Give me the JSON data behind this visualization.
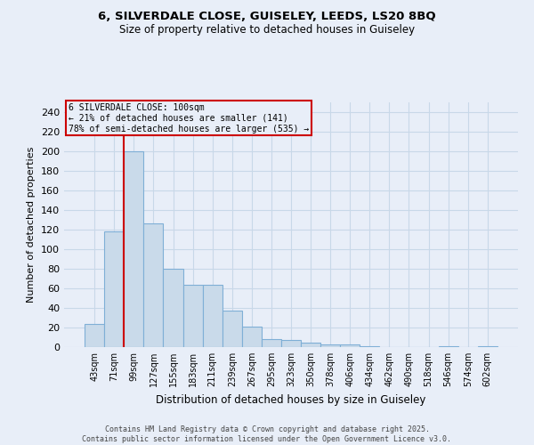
{
  "title_line1": "6, SILVERDALE CLOSE, GUISELEY, LEEDS, LS20 8BQ",
  "title_line2": "Size of property relative to detached houses in Guiseley",
  "xlabel": "Distribution of detached houses by size in Guiseley",
  "ylabel": "Number of detached properties",
  "categories": [
    "43sqm",
    "71sqm",
    "99sqm",
    "127sqm",
    "155sqm",
    "183sqm",
    "211sqm",
    "239sqm",
    "267sqm",
    "295sqm",
    "323sqm",
    "350sqm",
    "378sqm",
    "406sqm",
    "434sqm",
    "462sqm",
    "490sqm",
    "518sqm",
    "546sqm",
    "574sqm",
    "602sqm"
  ],
  "values": [
    24,
    118,
    200,
    126,
    80,
    64,
    64,
    37,
    21,
    8,
    7,
    5,
    3,
    3,
    1,
    0,
    0,
    0,
    1,
    0,
    1
  ],
  "bar_color": "#c9daea",
  "bar_edge_color": "#7fafd6",
  "grid_color": "#c8d8e8",
  "background_color": "#e8eef8",
  "vline_color": "#cc0000",
  "vline_x_idx": 2,
  "annotation_text": "6 SILVERDALE CLOSE: 100sqm\n← 21% of detached houses are smaller (141)\n78% of semi-detached houses are larger (535) →",
  "annotation_box_color": "#cc0000",
  "ylim": [
    0,
    250
  ],
  "yticks": [
    0,
    20,
    40,
    60,
    80,
    100,
    120,
    140,
    160,
    180,
    200,
    220,
    240
  ],
  "footer_text": "Contains HM Land Registry data © Crown copyright and database right 2025.\nContains public sector information licensed under the Open Government Licence v3.0.",
  "figsize": [
    6.0,
    5.0
  ],
  "dpi": 100
}
